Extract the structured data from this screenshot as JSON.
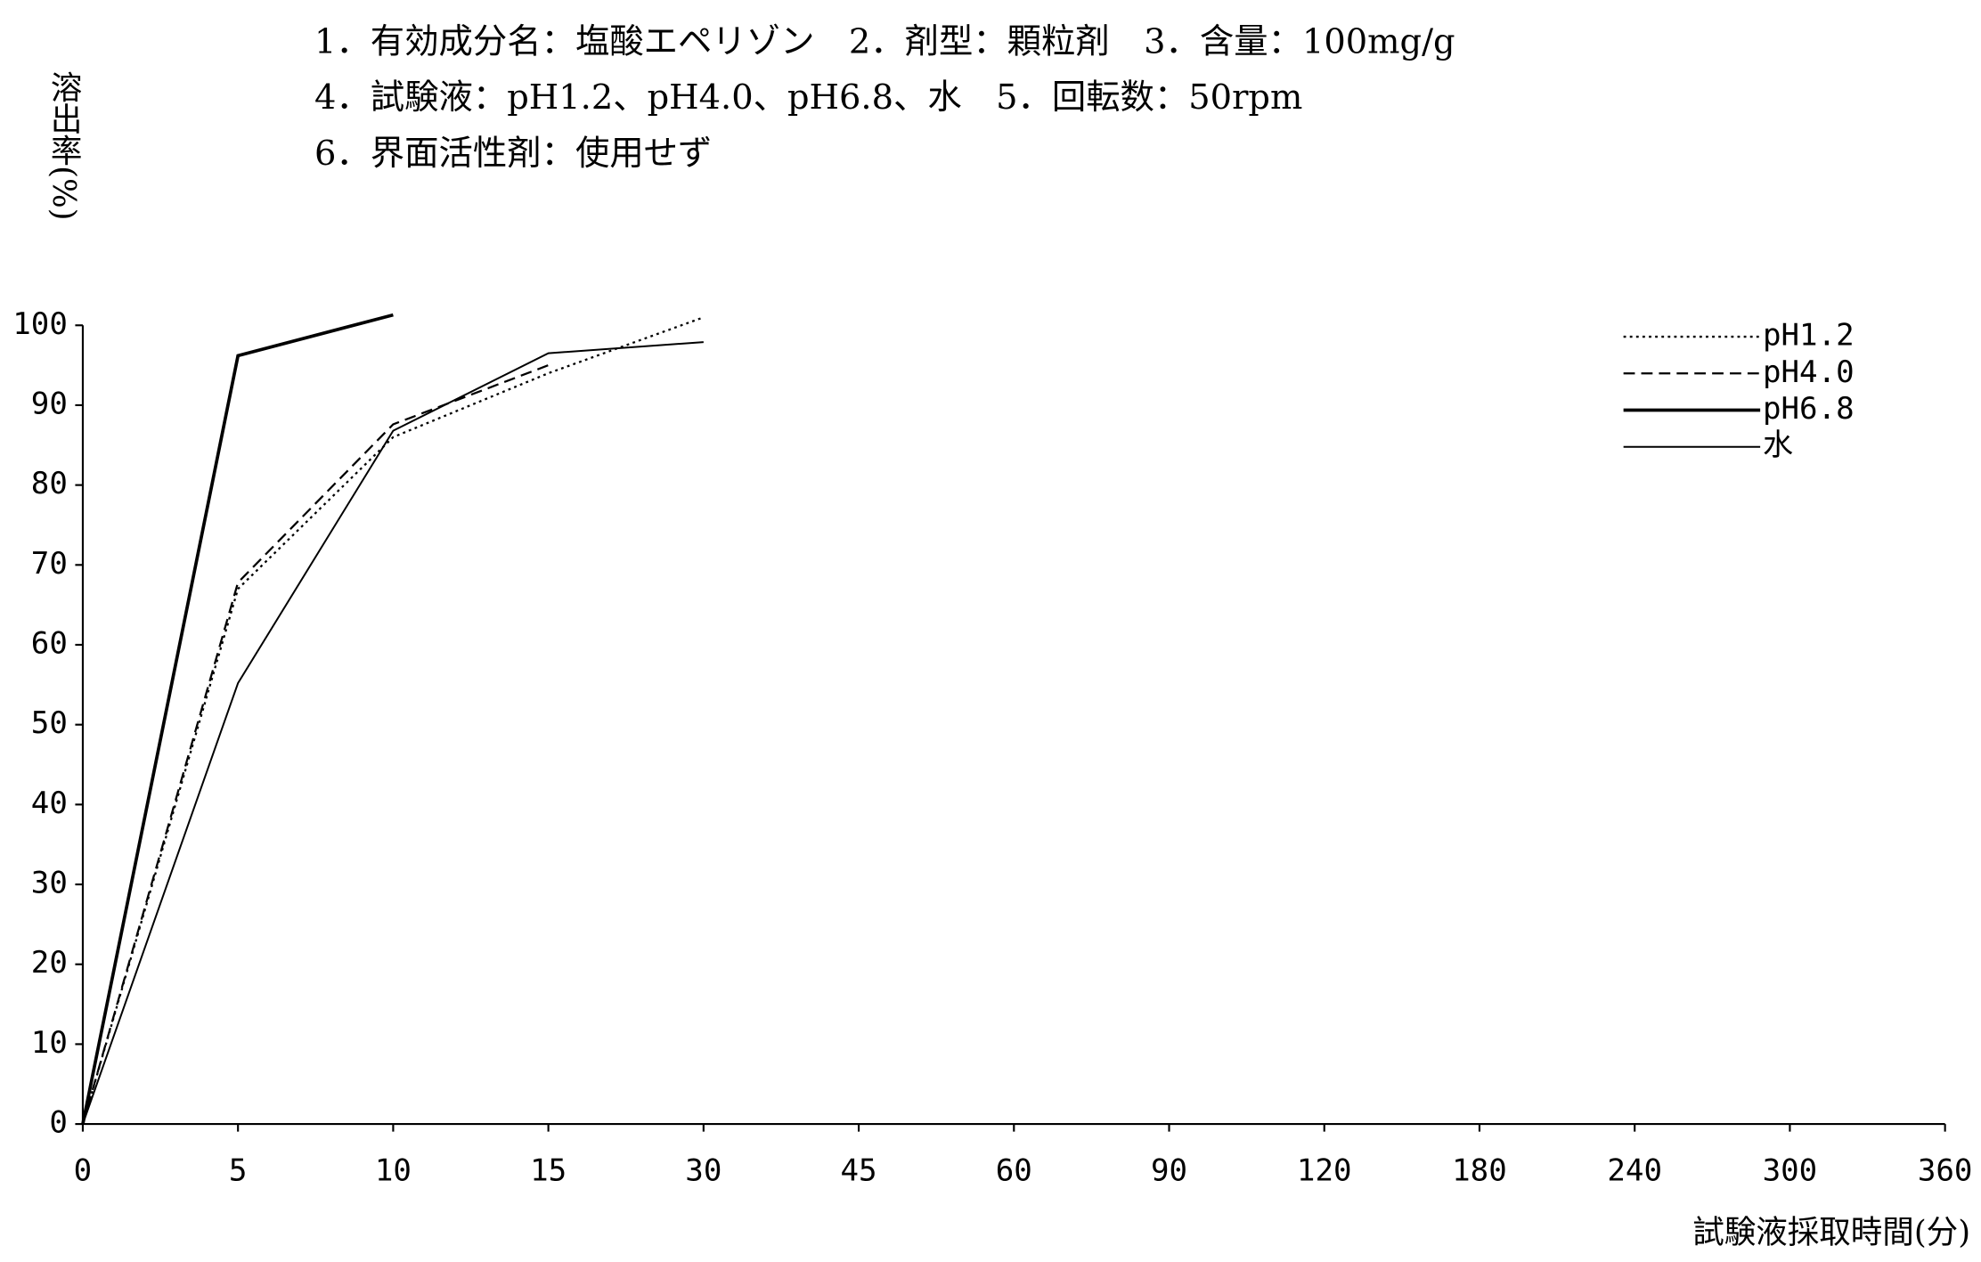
{
  "chart_data": {
    "type": "line",
    "title_lines": [
      "1．有効成分名：塩酸エペリゾン　2．剤型：顆粒剤　3．含量：100mg/g",
      "4．試験液：pH1.2、pH4.0、pH6.8、水　5．回転数：50rpm",
      "6．界面活性剤：使用せず"
    ],
    "y_label": "溶出率(%)",
    "x_label": "試験液採取時間(分)",
    "categories": [
      "0",
      "5",
      "10",
      "15",
      "30",
      "45",
      "60",
      "90",
      "120",
      "180",
      "240",
      "300",
      "360"
    ],
    "ylim": [
      0,
      100
    ],
    "yticks": [
      0,
      10,
      20,
      30,
      40,
      50,
      60,
      70,
      80,
      90,
      100
    ],
    "legend": "upper right",
    "series": [
      {
        "name": "pH1.2",
        "color": "#000000",
        "linestyle": "dotted",
        "values": [
          0,
          67,
          86,
          94,
          101,
          null,
          null,
          null,
          null,
          null,
          null,
          null,
          null
        ]
      },
      {
        "name": "pH4.0",
        "color": "#000000",
        "linestyle": "dashed",
        "values": [
          0,
          67.8,
          87.6,
          95,
          null,
          null,
          null,
          null,
          null,
          null,
          null,
          null,
          null
        ]
      },
      {
        "name": "pH6.8",
        "color": "#000000",
        "linestyle": "solid",
        "values": [
          0,
          96.2,
          101.3,
          null,
          null,
          null,
          null,
          null,
          null,
          null,
          null,
          null,
          null
        ]
      },
      {
        "name": "水",
        "color": "#000000",
        "linestyle": "solid",
        "values": [
          0,
          55.2,
          86.8,
          96.5,
          97.9,
          null,
          null,
          null,
          null,
          null,
          null,
          null,
          null
        ]
      }
    ]
  }
}
